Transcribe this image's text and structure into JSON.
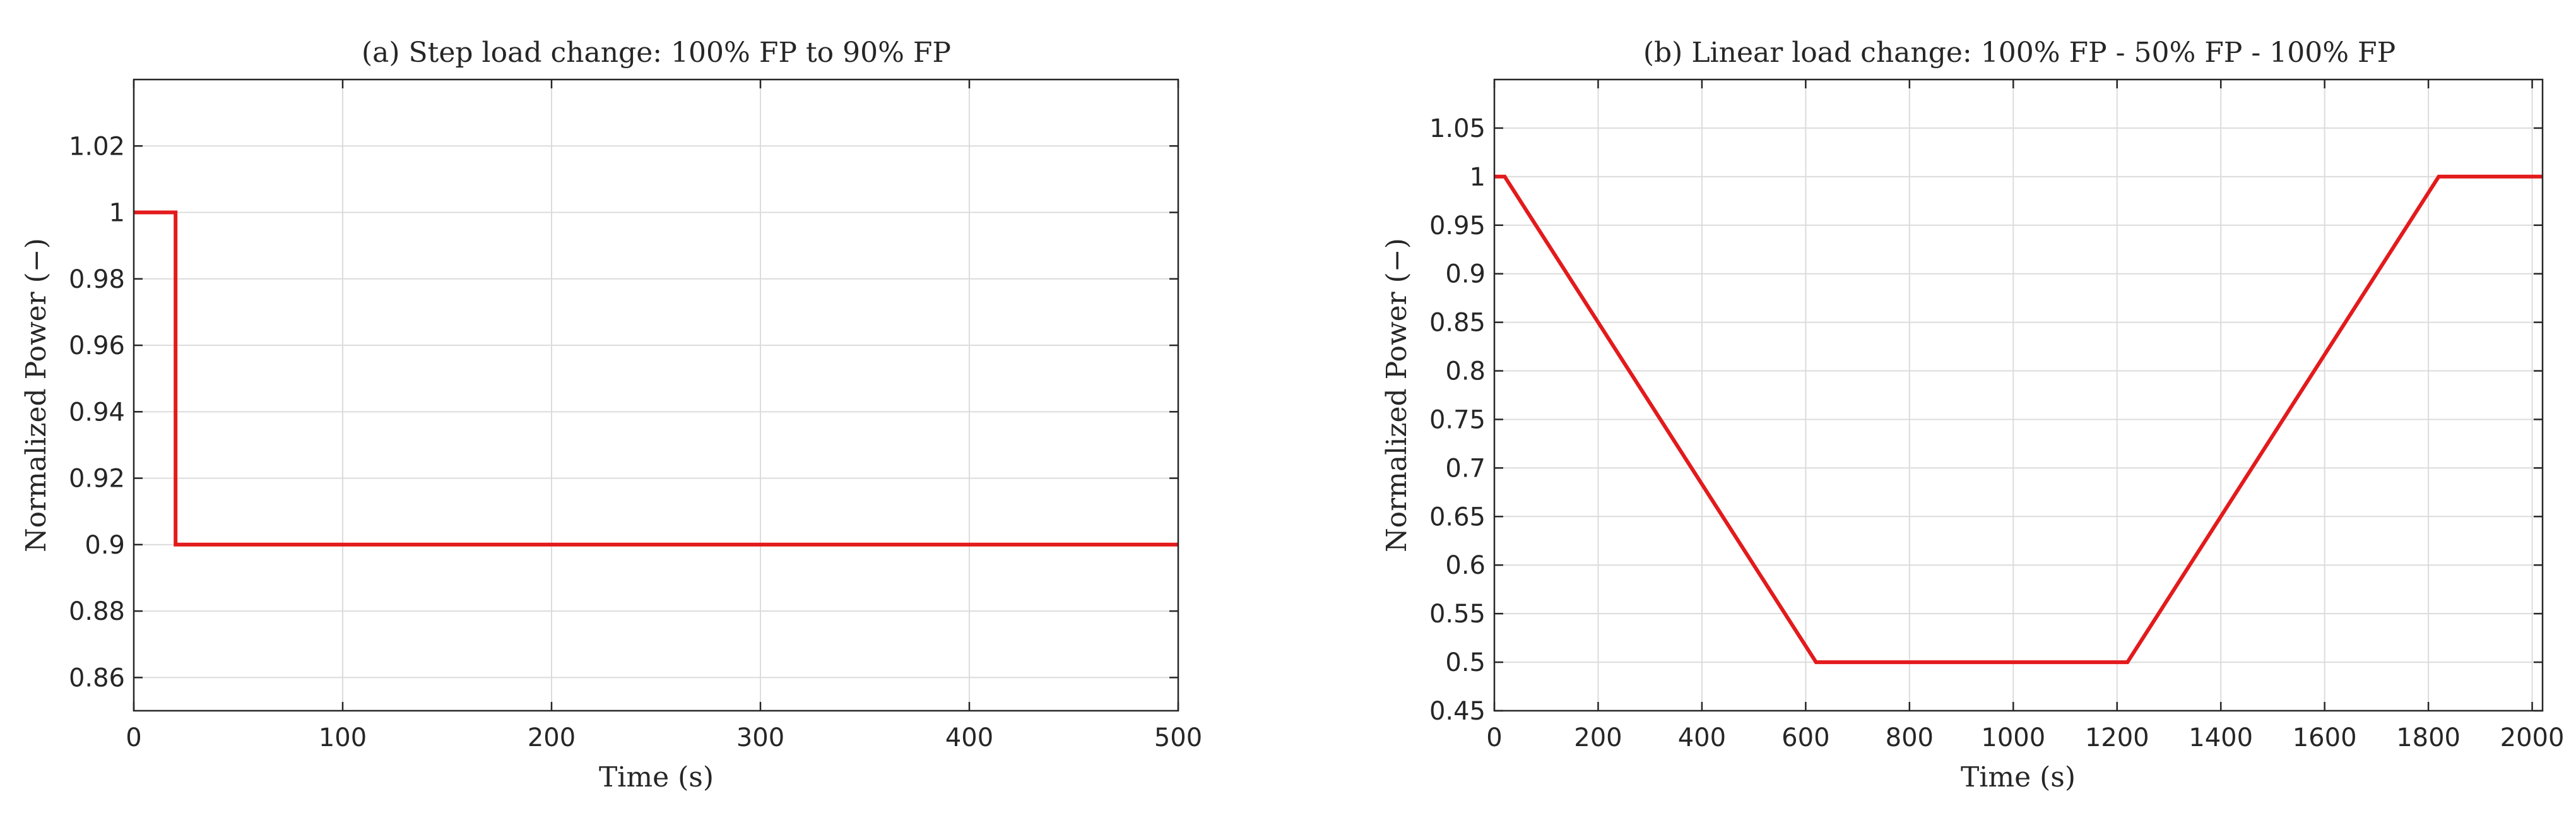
{
  "chart_data": [
    {
      "type": "line",
      "title": "(a) Step load change: 100% FP to 90% FP",
      "xlabel": "Time (s)",
      "ylabel": "Normalized Power (−)",
      "xlim": [
        0,
        500
      ],
      "ylim": [
        0.85,
        1.04
      ],
      "xticks": [
        0,
        100,
        200,
        300,
        400,
        500
      ],
      "xtick_labels": [
        "0",
        "100",
        "200",
        "300",
        "400",
        "500"
      ],
      "yticks": [
        0.86,
        0.88,
        0.9,
        0.92,
        0.94,
        0.96,
        0.98,
        1,
        1.02
      ],
      "ytick_labels": [
        "0.86",
        "0.88",
        "0.9",
        "0.92",
        "0.94",
        "0.96",
        "0.98",
        "1",
        "1.02"
      ],
      "grid": true,
      "series": [
        {
          "color": "#e31a1c",
          "x": [
            0,
            20,
            20,
            500
          ],
          "y": [
            1.0,
            1.0,
            0.9,
            0.9
          ]
        }
      ]
    },
    {
      "type": "line",
      "title": "(b) Linear load change: 100% FP - 50% FP - 100% FP",
      "xlabel": "Time (s)",
      "ylabel": "Normalized Power (−)",
      "xlim": [
        0,
        2020
      ],
      "ylim": [
        0.45,
        1.1
      ],
      "xticks": [
        0,
        200,
        400,
        600,
        800,
        1000,
        1200,
        1400,
        1600,
        1800,
        2000
      ],
      "xtick_labels": [
        "0",
        "200",
        "400",
        "600",
        "800",
        "1000",
        "1200",
        "1400",
        "1600",
        "1800",
        "2000"
      ],
      "yticks": [
        0.45,
        0.5,
        0.55,
        0.6,
        0.65,
        0.7,
        0.75,
        0.8,
        0.85,
        0.9,
        0.95,
        1,
        1.05
      ],
      "ytick_labels": [
        "0.45",
        "0.5",
        "0.55",
        "0.6",
        "0.65",
        "0.7",
        "0.75",
        "0.8",
        "0.85",
        "0.9",
        "0.95",
        "1",
        "1.05"
      ],
      "grid": true,
      "series": [
        {
          "color": "#e31a1c",
          "x": [
            0,
            20,
            620,
            1220,
            1820,
            2020
          ],
          "y": [
            1.0,
            1.0,
            0.5,
            0.5,
            1.0,
            1.0
          ]
        }
      ]
    }
  ]
}
